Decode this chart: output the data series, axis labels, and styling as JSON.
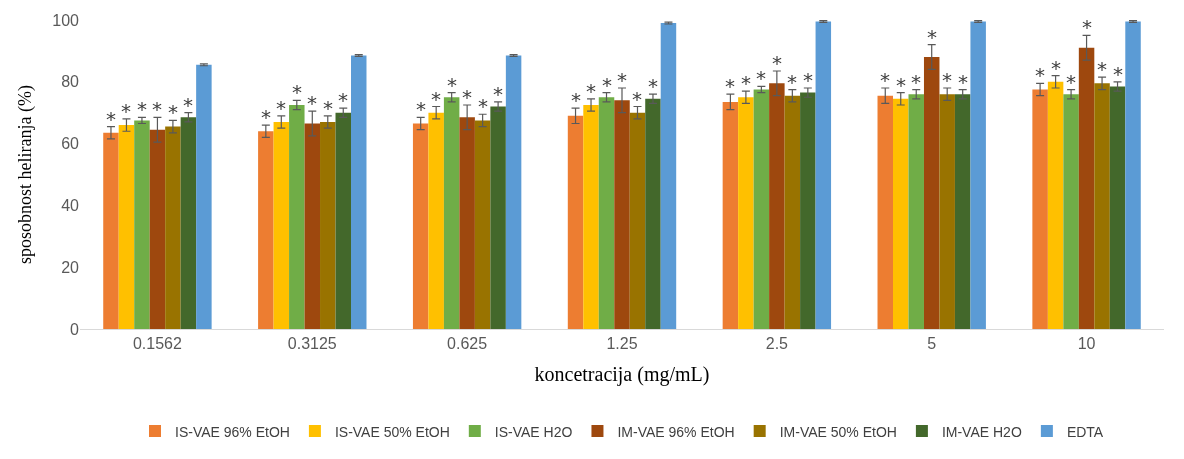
{
  "chart_data": {
    "type": "bar",
    "xlabel": "koncetracija (mg/mL)",
    "ylabel": "sposobnost heliranja (%)",
    "categories": [
      "0.1562",
      "0.3125",
      "0.625",
      "1.25",
      "2.5",
      "5",
      "10"
    ],
    "ylim": [
      0,
      100
    ],
    "yticks": [
      0,
      20,
      40,
      60,
      80,
      100
    ],
    "grid": false,
    "legend": "bottom",
    "series": [
      {
        "name": "IS-VAE 96% EtOH",
        "color": "#ed7d31",
        "values": [
          63.5,
          64,
          66.5,
          69,
          73.5,
          75.5,
          77.5
        ],
        "errors": [
          2,
          2,
          2,
          2.5,
          2.5,
          2.5,
          2
        ],
        "value_labels": [
          "*",
          "*",
          "*",
          "*",
          "*",
          "*",
          "*"
        ]
      },
      {
        "name": "IS-VAE 50% EtOH",
        "color": "#ffc000",
        "values": [
          66,
          67,
          70,
          72.5,
          75,
          74.5,
          80
        ],
        "errors": [
          2,
          2,
          2,
          2,
          2,
          2,
          2
        ],
        "value_labels": [
          "*",
          "*",
          "*",
          "*",
          "*",
          "*",
          "*"
        ]
      },
      {
        "name": "IS-VAE H2O",
        "color": "#70ad47",
        "values": [
          67.5,
          72.5,
          75,
          75,
          77.5,
          76,
          76
        ],
        "errors": [
          1,
          1.5,
          1.5,
          1.5,
          1,
          1.5,
          1.5
        ],
        "value_labels": [
          "*",
          "*",
          "*",
          "*",
          "*",
          "*",
          "*"
        ]
      },
      {
        "name": "IM-VAE 96% EtOH",
        "color": "#9e480e",
        "values": [
          64.5,
          66.5,
          68.5,
          74,
          79.5,
          88,
          91
        ],
        "errors": [
          4,
          4,
          4,
          4,
          4,
          4,
          4
        ],
        "value_labels": [
          "*",
          "*",
          "*",
          "*",
          "*",
          "*",
          "*"
        ]
      },
      {
        "name": "IM-VAE 50% EtOH",
        "color": "#997300",
        "values": [
          65.5,
          67,
          67.5,
          70,
          75.5,
          76,
          79.5
        ],
        "errors": [
          2,
          2,
          2,
          2,
          2,
          2,
          2
        ],
        "value_labels": [
          "*",
          "*",
          "*",
          "*",
          "*",
          "*",
          "*"
        ]
      },
      {
        "name": "IM-VAE H2O",
        "color": "#43682b",
        "values": [
          68.5,
          70,
          72,
          74.5,
          76.5,
          76,
          78.5
        ],
        "errors": [
          1.5,
          1.5,
          1.5,
          1.5,
          1.5,
          1.5,
          1.5
        ],
        "value_labels": [
          "*",
          "*",
          "*",
          "*",
          "*",
          "*",
          "*"
        ]
      },
      {
        "name": "EDTA",
        "color": "#5b9bd5",
        "values": [
          85.5,
          88.5,
          88.5,
          99,
          99.5,
          99.5,
          99.5
        ],
        "errors": [
          0.3,
          0.3,
          0.3,
          0.3,
          0.3,
          0.3,
          0.3
        ]
      }
    ]
  }
}
